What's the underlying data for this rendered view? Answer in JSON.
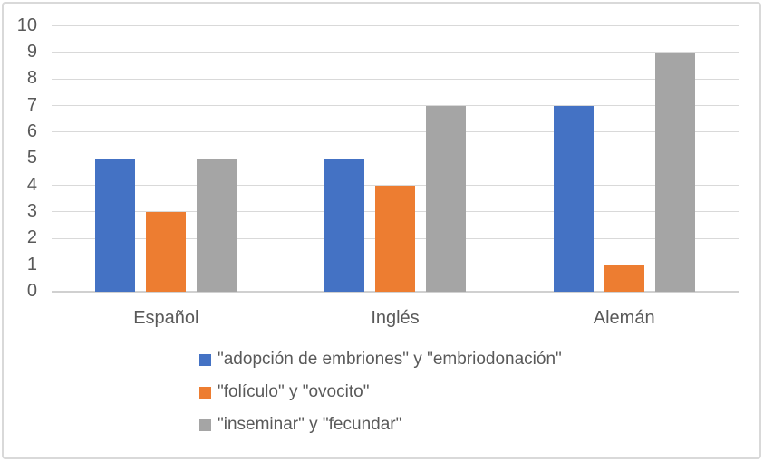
{
  "chart_data": {
    "type": "bar",
    "title": "",
    "xlabel": "",
    "ylabel": "",
    "categories": [
      "Español",
      "Inglés",
      "Alemán"
    ],
    "series": [
      {
        "name": "\"adopción de embriones\" y \"embriodonación\"",
        "color": "#4472C4",
        "values": [
          5,
          5,
          7
        ]
      },
      {
        "name": "\"folículo\" y \"ovocito\"",
        "color": "#ED7D31",
        "values": [
          3,
          4,
          1
        ]
      },
      {
        "name": "\"inseminar\" y \"fecundar\"",
        "color": "#A5A5A5",
        "values": [
          5,
          7,
          9
        ]
      }
    ],
    "ylim": [
      0,
      10
    ],
    "ytick_step": 1,
    "yticks": [
      0,
      1,
      2,
      3,
      4,
      5,
      6,
      7,
      8,
      9,
      10
    ],
    "grid": true,
    "legend_position": "bottom-stacked"
  },
  "colors": {
    "grid": "#d9d9d9",
    "axis_line": "#d0d0d0",
    "axis_text": "#595959",
    "frame_border": "#d9d9d9",
    "background": "#ffffff"
  }
}
